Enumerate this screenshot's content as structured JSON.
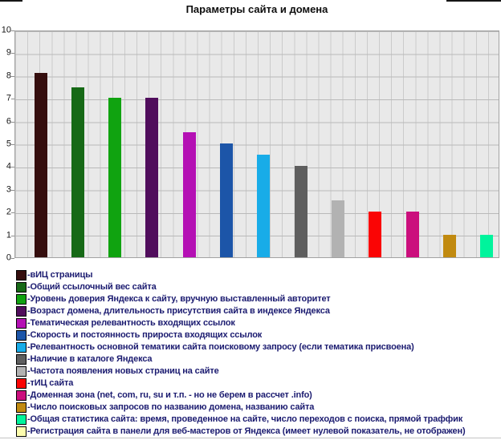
{
  "title": "Параметры сайта и домена",
  "chart_data": {
    "type": "bar",
    "title": "Параметры сайта и домена",
    "xlabel": "",
    "ylabel": "",
    "ylim": [
      0,
      10
    ],
    "yticks": [
      0,
      1,
      2,
      3,
      4,
      5,
      6,
      7,
      8,
      9,
      10
    ],
    "grid": true,
    "legend_position": "bottom",
    "legend_prefix": "-",
    "plot_bg_color": "#e9e9e9",
    "series": [
      {
        "name": "вИЦ страницы",
        "value": 8.1,
        "color": "#350e0e"
      },
      {
        "name": "Общий ссылочный вес сайта",
        "value": 7.45,
        "color": "#166916"
      },
      {
        "name": "Уровень доверия Яндекса к сайту, вручную выставленный авторитет",
        "value": 7,
        "color": "#10a310"
      },
      {
        "name": "Возраст домена, длительность присутствия сайта в индексе Яндекса",
        "value": 7,
        "color": "#500d5c"
      },
      {
        "name": "Тематическая релевантность входящих ссылок",
        "value": 5.5,
        "color": "#b410b4"
      },
      {
        "name": "Скорость и постоянность прироста входящих ссылок",
        "value": 5,
        "color": "#1c55a8"
      },
      {
        "name": "Релевантность основной тематики сайта поисковому запросу (если тематика присвоена)",
        "value": 4.5,
        "color": "#18ace8"
      },
      {
        "name": "Наличие в каталоге Яндекса",
        "value": 4,
        "color": "#5e5e5e"
      },
      {
        "name": "Частота появления новых страниц на сайте",
        "value": 2.5,
        "color": "#b2b2b2"
      },
      {
        "name": "тИЦ сайта",
        "value": 2,
        "color": "#fa0505"
      },
      {
        "name": "Доменная зона (net, com, ru, su и т.п. - но не берем в рассчет .info)",
        "value": 2,
        "color": "#cb0f7d"
      },
      {
        "name": "Число поисковых запросов по названию домена, названию сайта",
        "value": 1,
        "color": "#c18a10"
      },
      {
        "name": "Общая статистика сайта: время, проведенное на сайте, число переходов с поиска, прямой траффик",
        "value": 1,
        "color": "#00f49c"
      },
      {
        "name": "Регистрация сайта в панели для веб-мастеров от Яндекса (имеет нулевой показатель, не отображен)",
        "value": 0,
        "color": "#fdfdae"
      }
    ]
  }
}
